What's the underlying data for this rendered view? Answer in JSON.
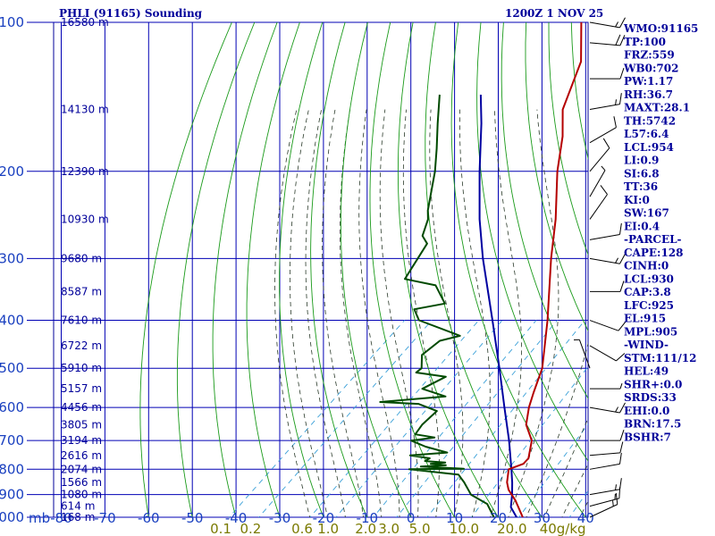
{
  "header": {
    "station": "PHLI (91165) Sounding",
    "datetime": "1200Z  1 NOV 25"
  },
  "colors": {
    "frame": "#00009a",
    "grid": "#0000b4",
    "dry_adiabat": "#1a9a1a",
    "moist_adiabat": "#2a3a2a",
    "mixing_ratio": "#3aa0d8",
    "temperature": "#b40000",
    "dewpoint": "#004a00",
    "parcel": "#0000a0",
    "pressure_labels": "#1a40c0",
    "mixing_labels": "#7a7a00",
    "wind_barbs": "#000000"
  },
  "chart_data": {
    "type": "skew-t",
    "title": "PHLI (91165) Sounding",
    "pressure_unit_label": "mb",
    "pressure_range": [
      1000,
      100
    ],
    "temperature_range": [
      -80,
      40
    ],
    "pressure_ticks": [
      "100",
      "200",
      "300",
      "400",
      "500",
      "600",
      "700",
      "800",
      "900",
      "1000"
    ],
    "temperature_ticks": [
      "-80",
      "-70",
      "-60",
      "-50",
      "-40",
      "-30",
      "-20",
      "-10",
      "0",
      "10",
      "20",
      "30",
      "40"
    ],
    "mixing_ratio_labels": [
      "0.1",
      "0.2",
      "0.6",
      "1.0",
      "2.0",
      "3.0",
      "5.0",
      "10.0",
      "20.0",
      "40g/kg"
    ],
    "height_labels": [
      {
        "pressure": 100,
        "label": "16580 m"
      },
      {
        "pressure": 150,
        "label": "14130 m"
      },
      {
        "pressure": 200,
        "label": "12390 m"
      },
      {
        "pressure": 250,
        "label": "10930 m"
      },
      {
        "pressure": 300,
        "label": "9680 m"
      },
      {
        "pressure": 350,
        "label": "8587 m"
      },
      {
        "pressure": 400,
        "label": "7610 m"
      },
      {
        "pressure": 450,
        "label": "6722 m"
      },
      {
        "pressure": 500,
        "label": "5910 m"
      },
      {
        "pressure": 550,
        "label": "5157 m"
      },
      {
        "pressure": 600,
        "label": "4456 m"
      },
      {
        "pressure": 650,
        "label": "3805 m"
      },
      {
        "pressure": 700,
        "label": "3194 m"
      },
      {
        "pressure": 750,
        "label": "2616 m"
      },
      {
        "pressure": 800,
        "label": "2074 m"
      },
      {
        "pressure": 850,
        "label": "1566 m"
      },
      {
        "pressure": 900,
        "label": "1080 m"
      },
      {
        "pressure": 950,
        "label": "614 m"
      },
      {
        "pressure": 1000,
        "label": "168 m"
      }
    ],
    "temperature_profile": [
      {
        "p": 1000,
        "t": 25.6
      },
      {
        "p": 925,
        "t": 19.8
      },
      {
        "p": 880,
        "t": 15.6
      },
      {
        "p": 850,
        "t": 13.4
      },
      {
        "p": 800,
        "t": 10.6
      },
      {
        "p": 780,
        "t": 12.6
      },
      {
        "p": 760,
        "t": 12.4
      },
      {
        "p": 700,
        "t": 8.8
      },
      {
        "p": 650,
        "t": 3.6
      },
      {
        "p": 600,
        "t": 0.0
      },
      {
        "p": 560,
        "t": -2.6
      },
      {
        "p": 500,
        "t": -6.6
      },
      {
        "p": 450,
        "t": -11.6
      },
      {
        "p": 400,
        "t": -17.2
      },
      {
        "p": 300,
        "t": -31.6
      },
      {
        "p": 250,
        "t": -40.2
      },
      {
        "p": 200,
        "t": -51.6
      },
      {
        "p": 170,
        "t": -59.0
      },
      {
        "p": 150,
        "t": -65.6
      },
      {
        "p": 120,
        "t": -73.2
      },
      {
        "p": 100,
        "t": -82.8
      }
    ],
    "dewpoint_profile": [
      {
        "p": 1000,
        "t": 19.0
      },
      {
        "p": 940,
        "t": 14.2
      },
      {
        "p": 900,
        "t": 8.2
      },
      {
        "p": 850,
        "t": 3.6
      },
      {
        "p": 820,
        "t": 0.4
      },
      {
        "p": 800,
        "t": -12.2
      },
      {
        "p": 798,
        "t": 0.2
      },
      {
        "p": 790,
        "t": -10.2
      },
      {
        "p": 785,
        "t": -4.8
      },
      {
        "p": 780,
        "t": -8.6
      },
      {
        "p": 775,
        "t": -5.6
      },
      {
        "p": 770,
        "t": -10.6
      },
      {
        "p": 760,
        "t": -10.2
      },
      {
        "p": 750,
        "t": -15.4
      },
      {
        "p": 740,
        "t": -7.6
      },
      {
        "p": 720,
        "t": -14.0
      },
      {
        "p": 700,
        "t": -18.8
      },
      {
        "p": 690,
        "t": -14.2
      },
      {
        "p": 680,
        "t": -19.4
      },
      {
        "p": 650,
        "t": -20.2
      },
      {
        "p": 610,
        "t": -20.2
      },
      {
        "p": 590,
        "t": -26.2
      },
      {
        "p": 585,
        "t": -35.4
      },
      {
        "p": 570,
        "t": -21.8
      },
      {
        "p": 550,
        "t": -29.0
      },
      {
        "p": 520,
        "t": -26.6
      },
      {
        "p": 510,
        "t": -34.4
      },
      {
        "p": 500,
        "t": -34.2
      },
      {
        "p": 470,
        "t": -37.4
      },
      {
        "p": 440,
        "t": -36.8
      },
      {
        "p": 430,
        "t": -33.4
      },
      {
        "p": 400,
        "t": -46.6
      },
      {
        "p": 380,
        "t": -50.4
      },
      {
        "p": 370,
        "t": -44.8
      },
      {
        "p": 340,
        "t": -51.4
      },
      {
        "p": 330,
        "t": -60.0
      },
      {
        "p": 280,
        "t": -63.6
      },
      {
        "p": 270,
        "t": -66.6
      },
      {
        "p": 250,
        "t": -69.4
      },
      {
        "p": 240,
        "t": -71.6
      },
      {
        "p": 200,
        "t": -79.6
      },
      {
        "p": 180,
        "t": -84.8
      },
      {
        "p": 160,
        "t": -90.8
      },
      {
        "p": 140,
        "t": -97.4
      }
    ],
    "parcel_profile": [
      {
        "p": 1000,
        "t": 24.2
      },
      {
        "p": 954,
        "t": 20.4
      },
      {
        "p": 900,
        "t": 17.6
      },
      {
        "p": 850,
        "t": 14.6
      },
      {
        "p": 800,
        "t": 11.2
      },
      {
        "p": 700,
        "t": 3.6
      },
      {
        "p": 600,
        "t": -5.6
      },
      {
        "p": 500,
        "t": -16.4
      },
      {
        "p": 400,
        "t": -29.8
      },
      {
        "p": 300,
        "t": -47.2
      },
      {
        "p": 250,
        "t": -57.6
      },
      {
        "p": 200,
        "t": -69.4
      },
      {
        "p": 160,
        "t": -80.8
      },
      {
        "p": 140,
        "t": -88.0
      }
    ],
    "wind_barbs": [
      {
        "p": 100,
        "dir": 100,
        "spd": 15
      },
      {
        "p": 110,
        "dir": 95,
        "spd": 20
      },
      {
        "p": 130,
        "dir": 90,
        "spd": 10
      },
      {
        "p": 150,
        "dir": 80,
        "spd": 15
      },
      {
        "p": 175,
        "dir": 60,
        "spd": 10
      },
      {
        "p": 200,
        "dir": 40,
        "spd": 10
      },
      {
        "p": 225,
        "dir": 30,
        "spd": 5
      },
      {
        "p": 250,
        "dir": 35,
        "spd": 10
      },
      {
        "p": 275,
        "dir": 80,
        "spd": 10
      },
      {
        "p": 300,
        "dir": 100,
        "spd": 15
      },
      {
        "p": 350,
        "dir": 90,
        "spd": 10
      },
      {
        "p": 400,
        "dir": 110,
        "spd": 10
      },
      {
        "p": 450,
        "dir": 120,
        "spd": 10
      },
      {
        "p": 500,
        "dir": 340,
        "spd": 5
      },
      {
        "p": 550,
        "dir": 90,
        "spd": 5
      },
      {
        "p": 600,
        "dir": 100,
        "spd": 15
      },
      {
        "p": 700,
        "dir": 90,
        "spd": 10
      },
      {
        "p": 750,
        "dir": 85,
        "spd": 10
      },
      {
        "p": 800,
        "dir": 80,
        "spd": 10
      },
      {
        "p": 900,
        "dir": 80,
        "spd": 15
      },
      {
        "p": 950,
        "dir": 75,
        "spd": 15
      },
      {
        "p": 1000,
        "dir": 65,
        "spd": 15
      }
    ]
  },
  "indices": [
    {
      "text": "WMO:91165",
      "color": "#00009a"
    },
    {
      "text": "TP:100",
      "color": "#00009a"
    },
    {
      "text": "FRZ:559",
      "color": "#00009a"
    },
    {
      "text": "WB0:702",
      "color": "#00009a"
    },
    {
      "text": "PW:1.17",
      "color": "#00009a"
    },
    {
      "text": "RH:36.7",
      "color": "#00009a"
    },
    {
      "text": "MAXT:28.1",
      "color": "#00009a"
    },
    {
      "text": "TH:5742",
      "color": "#00009a"
    },
    {
      "text": "L57:6.4",
      "color": "#00009a"
    },
    {
      "text": "LCL:954",
      "color": "#00009a"
    },
    {
      "text": "LI:0.9",
      "color": "#00009a"
    },
    {
      "text": "SI:6.8",
      "color": "#00009a"
    },
    {
      "text": "TT:36",
      "color": "#00009a"
    },
    {
      "text": "KI:0",
      "color": "#00009a"
    },
    {
      "text": "SW:167",
      "color": "#00009a"
    },
    {
      "text": "EI:0.4",
      "color": "#00009a"
    },
    {
      "text": "-PARCEL-",
      "color": "#00009a"
    },
    {
      "text": "CAPE:128",
      "color": "#00009a"
    },
    {
      "text": "CINH:0",
      "color": "#00009a"
    },
    {
      "text": "LCL:930",
      "color": "#00009a"
    },
    {
      "text": "CAP:3.8",
      "color": "#00009a"
    },
    {
      "text": "LFC:925",
      "color": "#00009a"
    },
    {
      "text": "EL:915",
      "color": "#00009a"
    },
    {
      "text": "MPL:905",
      "color": "#00009a"
    },
    {
      "text": "-WIND-",
      "color": "#00009a"
    },
    {
      "text": "STM:111/12",
      "color": "#00009a"
    },
    {
      "text": "HEL:49",
      "color": "#00009a"
    },
    {
      "text": "SHR+:0.0",
      "color": "#00009a"
    },
    {
      "text": "SRDS:33",
      "color": "#00009a"
    },
    {
      "text": "EHI:0.0",
      "color": "#00009a"
    },
    {
      "text": "BRN:17.5",
      "color": "#00009a"
    },
    {
      "text": "BSHR:7",
      "color": "#00009a"
    }
  ]
}
